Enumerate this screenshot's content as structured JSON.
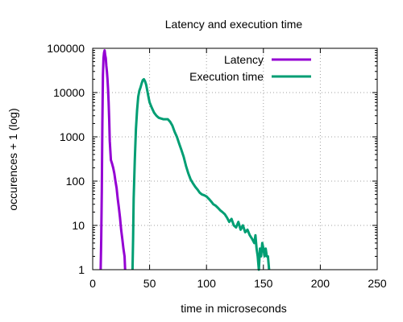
{
  "chart_data": {
    "type": "line",
    "title": "Latency and execution time",
    "xlabel": "time in microseconds",
    "ylabel": "occurences + 1 (log)",
    "xlim": [
      0,
      250
    ],
    "ylim": [
      1,
      100000
    ],
    "yscale": "log",
    "grid": true,
    "legend_position": "top-right",
    "x_ticks": [
      "0",
      "50",
      "100",
      "150",
      "200",
      "250"
    ],
    "y_ticks": [
      "1",
      "10",
      "100",
      "1000",
      "10000",
      "100000"
    ],
    "series": [
      {
        "name": "Latency",
        "color": "#9400d3",
        "points": [
          [
            7,
            1
          ],
          [
            7.5,
            5
          ],
          [
            8,
            60
          ],
          [
            8.5,
            2000
          ],
          [
            9,
            25000
          ],
          [
            9.5,
            60000
          ],
          [
            10,
            80000
          ],
          [
            10.5,
            90000
          ],
          [
            11,
            70000
          ],
          [
            11.5,
            60000
          ],
          [
            12,
            40000
          ],
          [
            12.5,
            30000
          ],
          [
            13,
            20000
          ],
          [
            13.5,
            12000
          ],
          [
            14,
            6000
          ],
          [
            14.5,
            2500
          ],
          [
            15,
            800
          ],
          [
            16,
            300
          ],
          [
            17,
            250
          ],
          [
            18,
            200
          ],
          [
            19,
            150
          ],
          [
            20,
            100
          ],
          [
            21,
            70
          ],
          [
            22,
            40
          ],
          [
            23,
            25
          ],
          [
            24,
            15
          ],
          [
            25,
            8
          ],
          [
            26,
            5
          ],
          [
            27,
            3
          ],
          [
            28,
            2
          ],
          [
            28.5,
            1
          ]
        ]
      },
      {
        "name": "Execution time",
        "color": "#009e73",
        "points": [
          [
            35,
            1
          ],
          [
            35.5,
            5
          ],
          [
            36,
            40
          ],
          [
            37,
            300
          ],
          [
            38,
            1500
          ],
          [
            39,
            4000
          ],
          [
            40,
            8000
          ],
          [
            41,
            11000
          ],
          [
            42,
            13000
          ],
          [
            43,
            16000
          ],
          [
            44,
            19000
          ],
          [
            45,
            20000
          ],
          [
            46,
            18000
          ],
          [
            47,
            15000
          ],
          [
            48,
            11000
          ],
          [
            49,
            8000
          ],
          [
            50,
            6000
          ],
          [
            52,
            4500
          ],
          [
            54,
            3500
          ],
          [
            56,
            3000
          ],
          [
            58,
            2700
          ],
          [
            60,
            2600
          ],
          [
            62,
            2500
          ],
          [
            64,
            2500
          ],
          [
            66,
            2500
          ],
          [
            68,
            2200
          ],
          [
            70,
            1800
          ],
          [
            72,
            1300
          ],
          [
            74,
            1000
          ],
          [
            76,
            700
          ],
          [
            78,
            500
          ],
          [
            80,
            350
          ],
          [
            82,
            220
          ],
          [
            84,
            150
          ],
          [
            86,
            110
          ],
          [
            88,
            90
          ],
          [
            90,
            75
          ],
          [
            92,
            65
          ],
          [
            94,
            55
          ],
          [
            96,
            50
          ],
          [
            98,
            48
          ],
          [
            100,
            45
          ],
          [
            102,
            40
          ],
          [
            104,
            35
          ],
          [
            106,
            30
          ],
          [
            108,
            28
          ],
          [
            110,
            25
          ],
          [
            112,
            22
          ],
          [
            114,
            20
          ],
          [
            116,
            18
          ],
          [
            118,
            15
          ],
          [
            120,
            12
          ],
          [
            122,
            14
          ],
          [
            124,
            10
          ],
          [
            126,
            9
          ],
          [
            128,
            12
          ],
          [
            130,
            8
          ],
          [
            132,
            10
          ],
          [
            134,
            7
          ],
          [
            136,
            8
          ],
          [
            138,
            6
          ],
          [
            140,
            5
          ],
          [
            142,
            4
          ],
          [
            143,
            6
          ],
          [
            144,
            3
          ],
          [
            145,
            2
          ],
          [
            146,
            1
          ],
          [
            147,
            3
          ],
          [
            148,
            2
          ],
          [
            149,
            4
          ],
          [
            150,
            3
          ],
          [
            151,
            2
          ],
          [
            152,
            3
          ],
          [
            153,
            2
          ],
          [
            154,
            2
          ],
          [
            155,
            1
          ]
        ]
      }
    ]
  }
}
